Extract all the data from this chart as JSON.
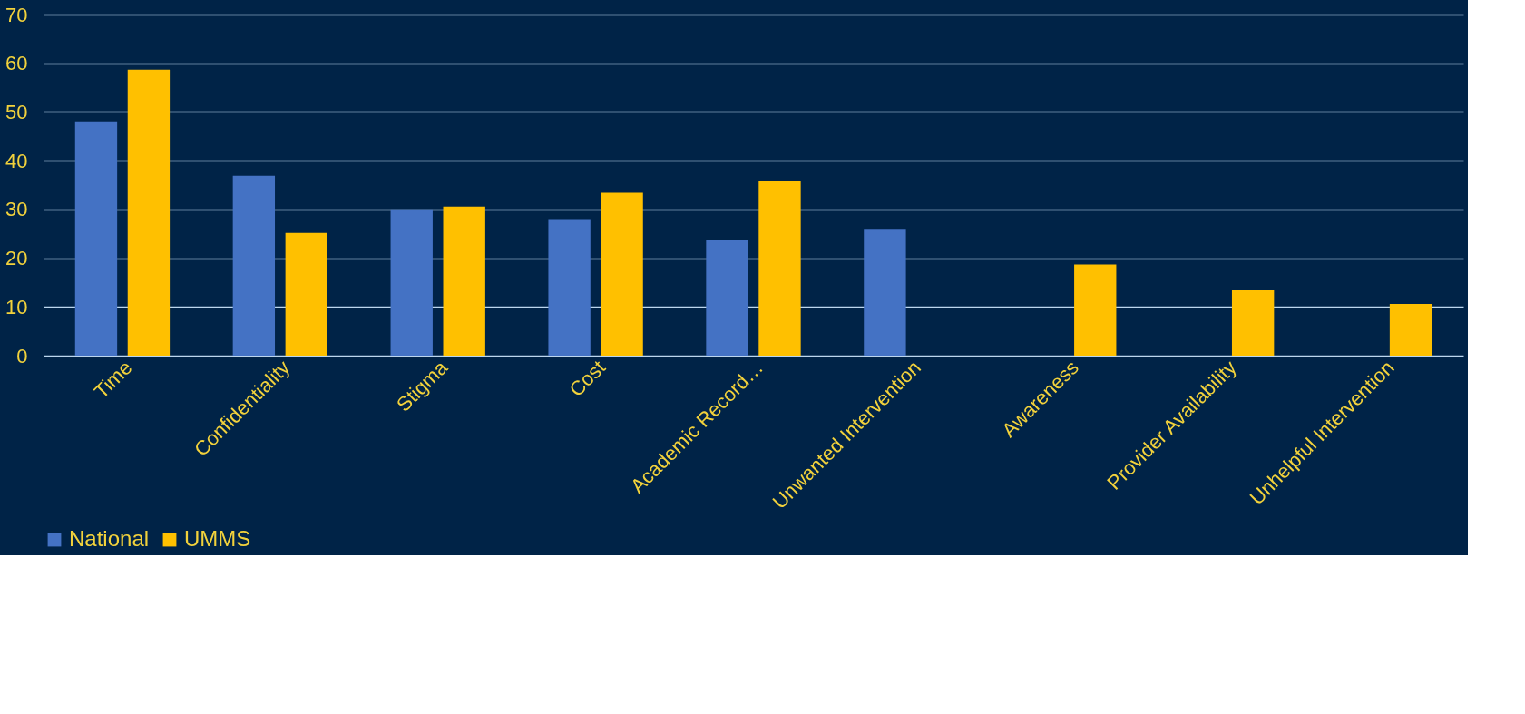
{
  "chart_data": {
    "type": "bar",
    "categories": [
      "Time",
      "Confidentiality",
      "Stigma",
      "Cost",
      "Academic Record…",
      "Unwanted Intervention",
      "Awareness",
      "Provider Availability",
      "Unhelpful Intervention"
    ],
    "series": [
      {
        "name": "National",
        "color": "#4472c4",
        "values": [
          48.1,
          36.9,
          30.0,
          28.0,
          23.8,
          26.0,
          null,
          null,
          null
        ]
      },
      {
        "name": "UMMS",
        "color": "#ffc000",
        "values": [
          58.7,
          25.2,
          30.6,
          33.4,
          35.9,
          null,
          18.7,
          13.4,
          10.6
        ]
      }
    ],
    "ylim": [
      0,
      70
    ],
    "yticks": [
      0,
      10,
      20,
      30,
      40,
      50,
      60,
      70
    ],
    "grid": "y",
    "legend": "bottom"
  }
}
